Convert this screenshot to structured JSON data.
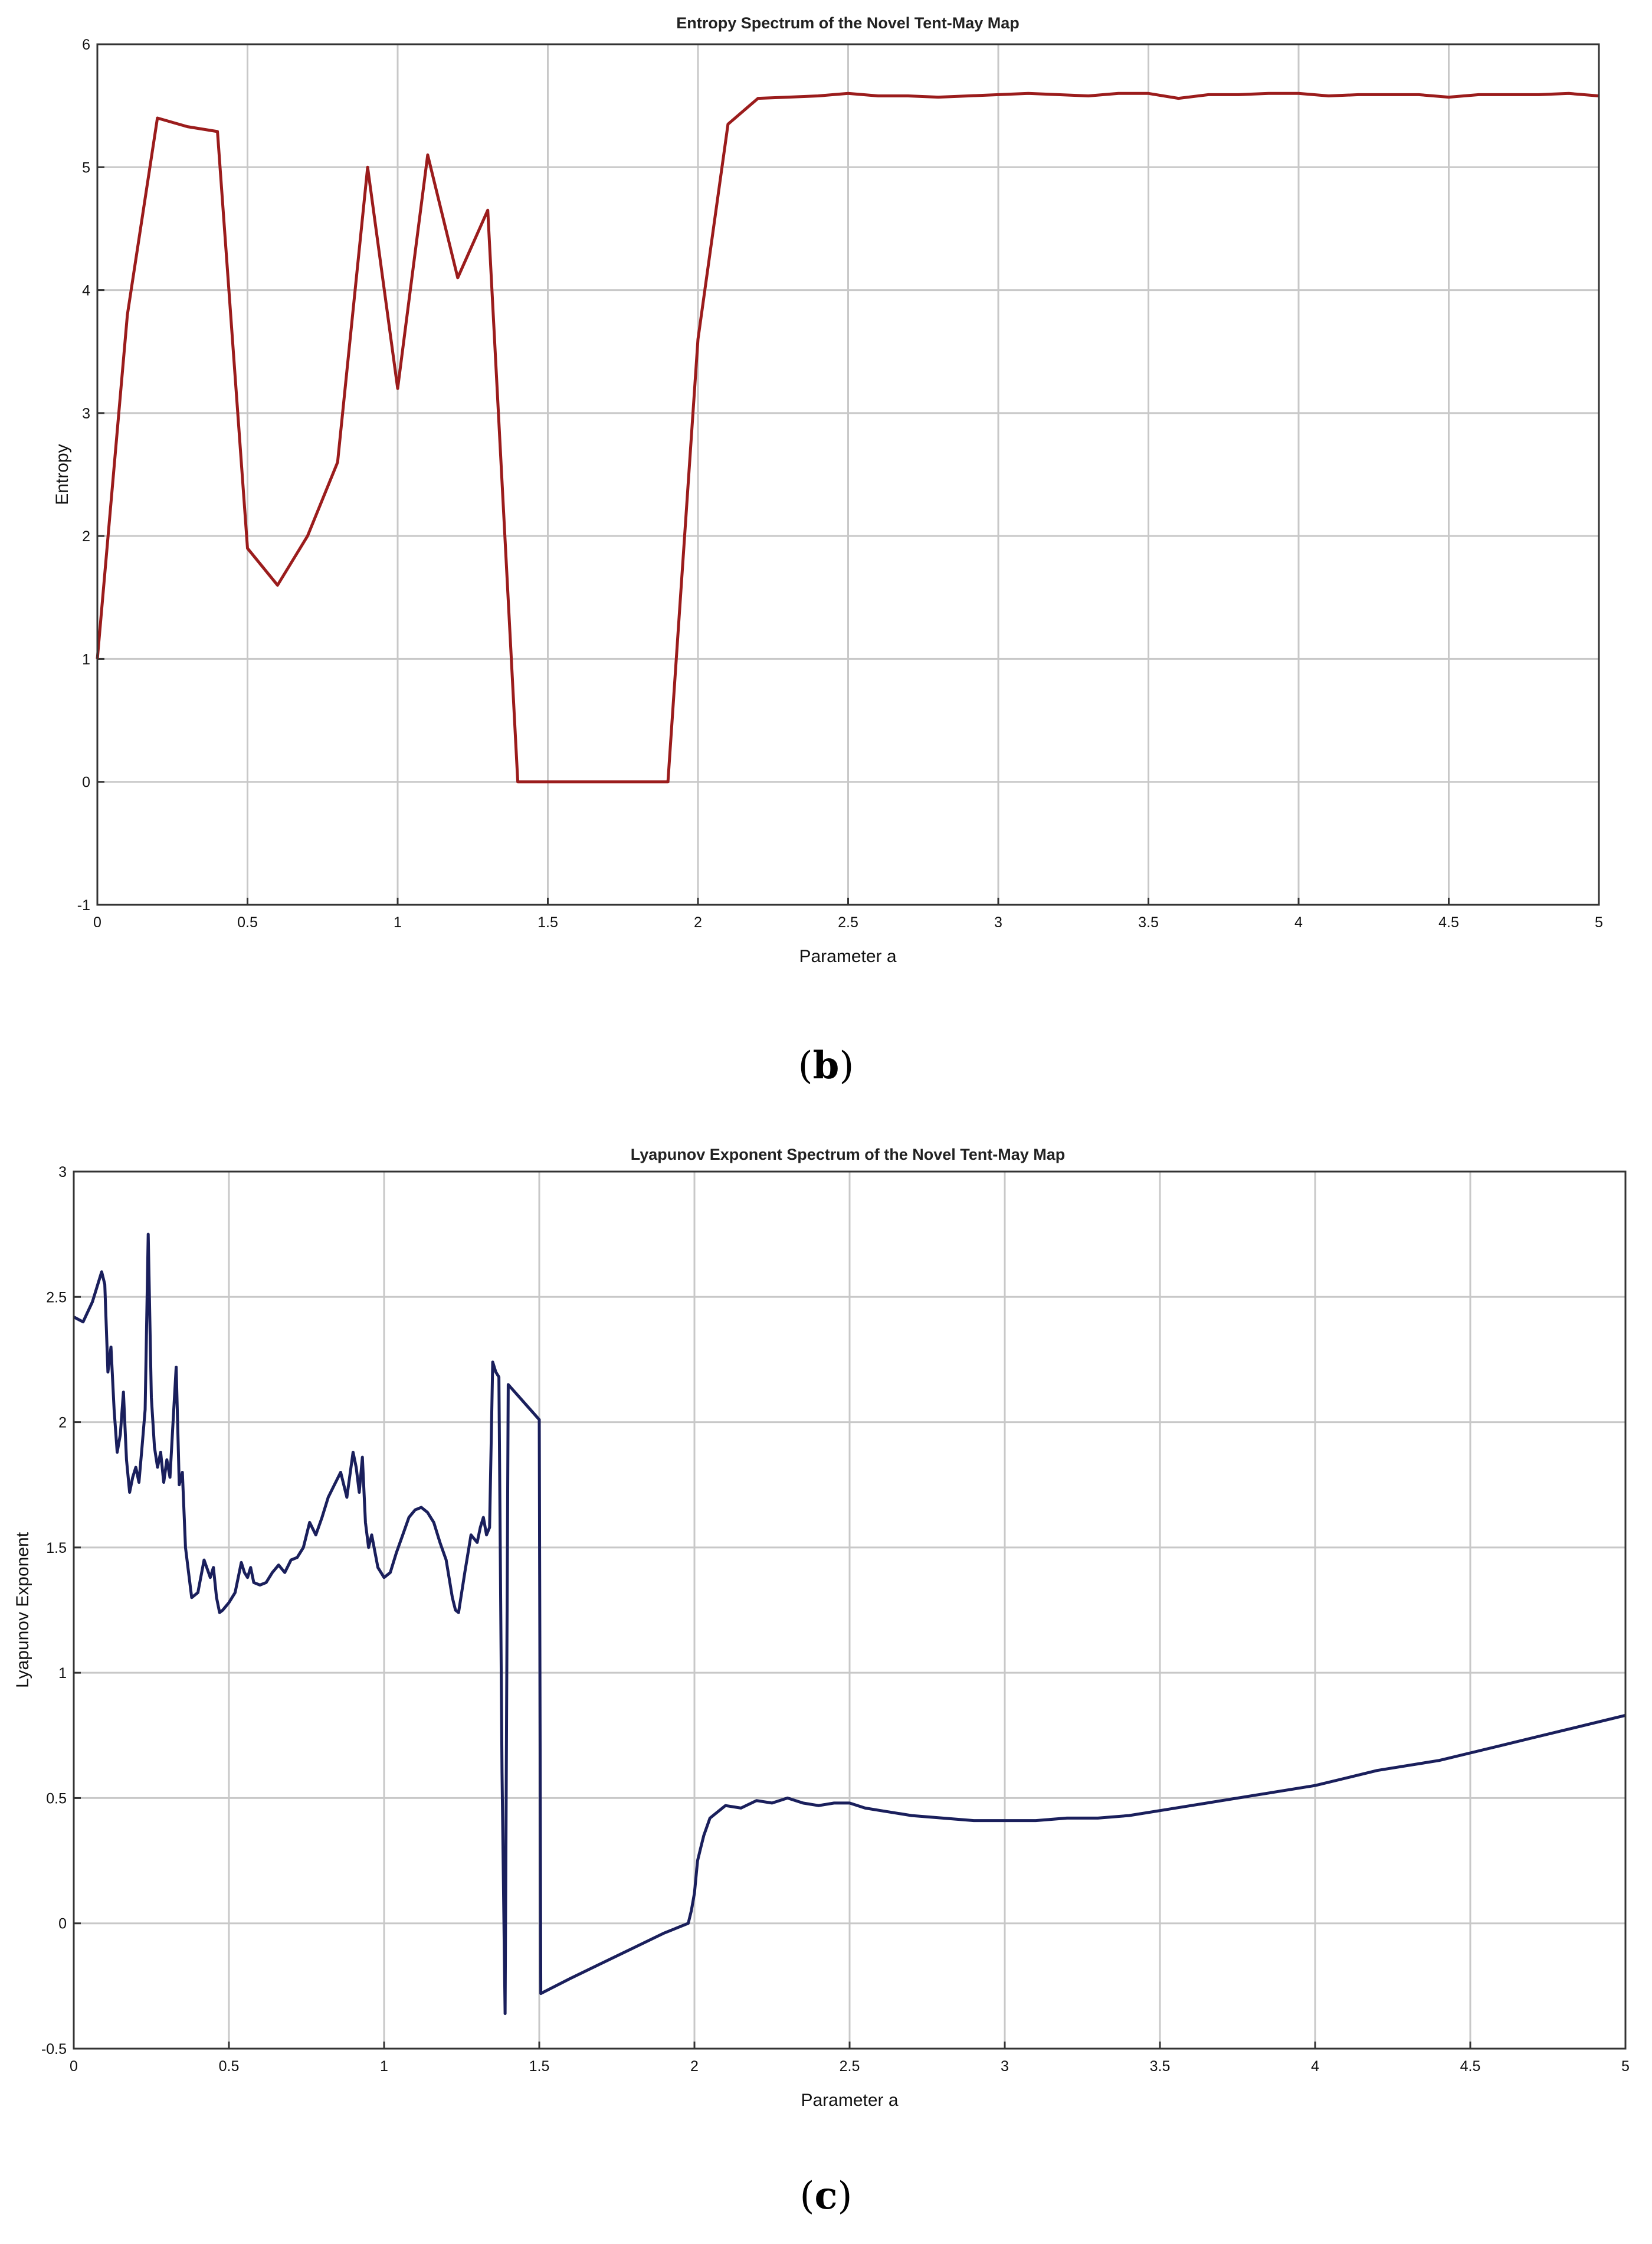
{
  "chart_data": [
    {
      "type": "line",
      "panel_label": "b",
      "title": "Entropy Spectrum of the Novel Tent-May Map",
      "xlabel": "Parameter a",
      "ylabel": "Entropy",
      "xlim": [
        0,
        5
      ],
      "ylim": [
        -1,
        6
      ],
      "xticks": [
        "0",
        "0.5",
        "1",
        "1.5",
        "2",
        "2.5",
        "3",
        "3.5",
        "4",
        "4.5",
        "5"
      ],
      "yticks": [
        "-1",
        "0",
        "1",
        "2",
        "3",
        "4",
        "5",
        "6"
      ],
      "grid": true,
      "color": "#9b1c1c",
      "series": [
        {
          "x": [
            0,
            0.1,
            0.2,
            0.3,
            0.4,
            0.5,
            0.6,
            0.7,
            0.8,
            0.9,
            1.0,
            1.1,
            1.2,
            1.3,
            1.4,
            1.5,
            1.6,
            1.7,
            1.8,
            1.9,
            2.0,
            2.1,
            2.2,
            2.3,
            2.4,
            2.5,
            2.6,
            2.7,
            2.8,
            2.9,
            3.0,
            3.1,
            3.2,
            3.3,
            3.4,
            3.5,
            3.6,
            3.7,
            3.8,
            3.9,
            4.0,
            4.1,
            4.2,
            4.3,
            4.4,
            4.5,
            4.6,
            4.7,
            4.8,
            4.9,
            5.0
          ],
          "y": [
            1.0,
            3.8,
            5.4,
            5.33,
            5.29,
            1.9,
            1.6,
            2.0,
            2.6,
            5.0,
            3.2,
            5.1,
            4.1,
            4.65,
            0,
            0,
            0,
            0,
            0,
            0,
            3.6,
            5.35,
            5.56,
            5.57,
            5.58,
            5.6,
            5.58,
            5.58,
            5.57,
            5.58,
            5.59,
            5.6,
            5.59,
            5.58,
            5.6,
            5.6,
            5.56,
            5.59,
            5.59,
            5.6,
            5.6,
            5.58,
            5.59,
            5.59,
            5.59,
            5.57,
            5.59,
            5.59,
            5.59,
            5.6,
            5.58
          ]
        }
      ]
    },
    {
      "type": "line",
      "panel_label": "c",
      "title": "Lyapunov Exponent Spectrum of the Novel Tent-May Map",
      "xlabel": "Parameter a",
      "ylabel": "Lyapunov Exponent",
      "xlim": [
        0,
        5
      ],
      "ylim": [
        -0.5,
        3
      ],
      "xticks": [
        "0",
        "0.5",
        "1",
        "1.5",
        "2",
        "2.5",
        "3",
        "3.5",
        "4",
        "4.5",
        "5"
      ],
      "yticks": [
        "-0.5",
        "0",
        "0.5",
        "1",
        "1.5",
        "2",
        "2.5",
        "3"
      ],
      "grid": true,
      "color": "#1a1f5c",
      "series": [
        {
          "x": [
            0,
            0.03,
            0.06,
            0.09,
            0.1,
            0.11,
            0.12,
            0.13,
            0.14,
            0.15,
            0.16,
            0.17,
            0.18,
            0.19,
            0.2,
            0.21,
            0.22,
            0.23,
            0.24,
            0.25,
            0.26,
            0.27,
            0.28,
            0.29,
            0.3,
            0.31,
            0.32,
            0.33,
            0.34,
            0.35,
            0.36,
            0.37,
            0.38,
            0.4,
            0.42,
            0.44,
            0.45,
            0.46,
            0.47,
            0.48,
            0.5,
            0.52,
            0.54,
            0.55,
            0.56,
            0.57,
            0.58,
            0.6,
            0.62,
            0.64,
            0.66,
            0.68,
            0.7,
            0.72,
            0.74,
            0.76,
            0.78,
            0.8,
            0.82,
            0.84,
            0.86,
            0.88,
            0.9,
            0.91,
            0.92,
            0.93,
            0.94,
            0.95,
            0.96,
            0.98,
            1.0,
            1.02,
            1.04,
            1.06,
            1.08,
            1.1,
            1.12,
            1.14,
            1.16,
            1.18,
            1.2,
            1.22,
            1.23,
            1.24,
            1.26,
            1.28,
            1.3,
            1.31,
            1.32,
            1.33,
            1.34,
            1.35,
            1.36,
            1.37,
            1.38,
            1.39,
            1.4,
            1.5,
            1.505,
            1.6,
            1.7,
            1.8,
            1.9,
            1.98,
            1.99,
            2.0,
            2.01,
            2.02,
            2.03,
            2.05,
            2.07,
            2.1,
            2.15,
            2.2,
            2.25,
            2.3,
            2.35,
            2.4,
            2.45,
            2.5,
            2.55,
            2.6,
            2.7,
            2.8,
            2.9,
            3.0,
            3.1,
            3.2,
            3.3,
            3.4,
            3.5,
            3.6,
            3.7,
            3.8,
            3.9,
            4.0,
            4.1,
            4.2,
            4.3,
            4.4,
            4.5,
            4.6,
            4.7,
            4.8,
            4.9,
            5.0
          ],
          "y": [
            2.42,
            2.4,
            2.48,
            2.6,
            2.55,
            2.2,
            2.3,
            2.05,
            1.88,
            1.95,
            2.12,
            1.85,
            1.72,
            1.78,
            1.82,
            1.76,
            1.9,
            2.05,
            2.75,
            2.1,
            1.9,
            1.82,
            1.88,
            1.76,
            1.85,
            1.78,
            2.0,
            2.22,
            1.75,
            1.8,
            1.5,
            1.4,
            1.3,
            1.32,
            1.45,
            1.38,
            1.42,
            1.3,
            1.24,
            1.25,
            1.28,
            1.32,
            1.44,
            1.4,
            1.38,
            1.42,
            1.36,
            1.35,
            1.36,
            1.4,
            1.43,
            1.4,
            1.45,
            1.46,
            1.5,
            1.6,
            1.55,
            1.62,
            1.7,
            1.75,
            1.8,
            1.7,
            1.88,
            1.82,
            1.72,
            1.86,
            1.6,
            1.5,
            1.55,
            1.42,
            1.38,
            1.4,
            1.48,
            1.55,
            1.62,
            1.65,
            1.66,
            1.64,
            1.6,
            1.52,
            1.45,
            1.3,
            1.25,
            1.24,
            1.4,
            1.55,
            1.52,
            1.58,
            1.62,
            1.55,
            1.58,
            2.24,
            2.2,
            2.18,
            0.6,
            -0.36,
            2.15,
            2.01,
            -0.28,
            -0.22,
            -0.16,
            -0.1,
            -0.04,
            0.0,
            0.05,
            0.12,
            0.25,
            0.3,
            0.35,
            0.42,
            0.44,
            0.47,
            0.46,
            0.49,
            0.48,
            0.5,
            0.48,
            0.47,
            0.48,
            0.48,
            0.46,
            0.45,
            0.43,
            0.42,
            0.41,
            0.41,
            0.41,
            0.42,
            0.42,
            0.43,
            0.45,
            0.47,
            0.49,
            0.51,
            0.53,
            0.55,
            0.58,
            0.61,
            0.63,
            0.65,
            0.68,
            0.71,
            0.74,
            0.77,
            0.8,
            0.83
          ]
        }
      ]
    }
  ]
}
